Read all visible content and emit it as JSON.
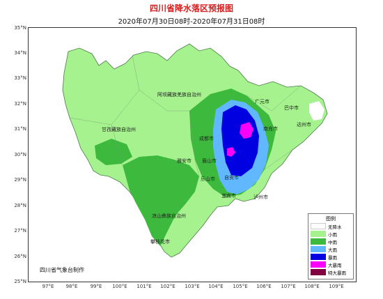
{
  "title": "四川省降水落区预报图",
  "subtitle": "2020年07月30日08时-2020年07月31日08时",
  "credit": "四川省气象台制作",
  "lat_labels": [
    "35°N",
    "34°N",
    "33°N",
    "32°N",
    "31°N",
    "30°N",
    "29°N",
    "28°N",
    "27°N",
    "26°N",
    "25°N"
  ],
  "lon_labels": [
    "97°E",
    "98°E",
    "99°E",
    "100°E",
    "101°E",
    "102°E",
    "103°E",
    "104°E",
    "105°E",
    "106°E",
    "107°E",
    "108°E",
    "109°E"
  ],
  "cities": {
    "guangyuan": "广元市",
    "bazhong": "巴中市",
    "dazhou": "达州市",
    "nanchong": "南充市",
    "chengdu": "成都市",
    "yaan": "雅安市",
    "meishan": "眉山市",
    "leshan": "乐山市",
    "zigong": "自贡市",
    "yibin": "宜宾市",
    "luzhou": "泸州市",
    "panzhihua": "攀枝花市"
  },
  "regions": {
    "aba": "阿坝藏族羌族自治州",
    "ganzi": "甘孜藏族自治州",
    "liangshan": "凉山彝族自治州"
  },
  "legend": {
    "title": "图例",
    "items": [
      {
        "label": "无降水",
        "color": "#ffffff"
      },
      {
        "label": "小雨",
        "color": "#a6f28f"
      },
      {
        "label": "中雨",
        "color": "#3dba3d"
      },
      {
        "label": "大雨",
        "color": "#61b8ff"
      },
      {
        "label": "暴雨",
        "color": "#0000e1"
      },
      {
        "label": "大暴雨",
        "color": "#fa00fa"
      },
      {
        "label": "特大暴雨",
        "color": "#800040"
      }
    ]
  }
}
